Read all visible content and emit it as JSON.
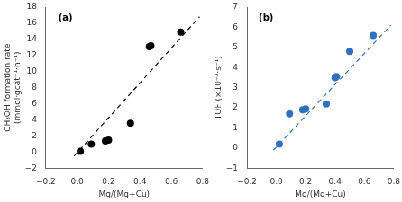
{
  "chart_data": [
    {
      "type": "scatter",
      "annotations": [
        "(a)"
      ],
      "xlabel": "Mg/(Mg+Cu)",
      "ylabel": [
        "CH₃OH formation rate",
        "(mmol·gcat⁻¹·h⁻¹)"
      ],
      "xlim": [
        -0.2,
        0.8
      ],
      "xticks": [
        {
          "value": -0.2,
          "label": "−0.2"
        },
        {
          "value": 0.0,
          "label": "0.0"
        },
        0.2,
        0.4,
        0.6,
        0.8
      ],
      "ylim": [
        -2,
        18
      ],
      "yticks": [
        {
          "value": -2,
          "label": "−2"
        },
        0,
        2,
        4,
        6,
        8,
        10,
        12,
        14,
        16,
        18
      ],
      "grid": false,
      "series": [
        {
          "type": "line",
          "color": "black",
          "line_style": "dashed",
          "x": [
            -0.02,
            0.78
          ],
          "values": [
            -0.5,
            16.8
          ]
        },
        {
          "type": "scatter",
          "color": "black",
          "marker": "circle",
          "x": [
            0.02,
            0.09,
            0.18,
            0.2,
            0.34,
            0.46,
            0.47,
            0.66
          ],
          "values": [
            0.1,
            1.0,
            1.4,
            1.5,
            3.6,
            13.1,
            13.2,
            14.9
          ]
        }
      ]
    },
    {
      "type": "scatter",
      "annotations": [
        "(b)"
      ],
      "xlabel": "Mg/(Mg+Cu)",
      "ylabel": "TOF (×10⁻³·s⁻¹)",
      "xlim": [
        -0.2,
        0.8
      ],
      "xticks": [
        {
          "value": -0.2,
          "label": "−0.2"
        },
        {
          "value": 0.0,
          "label": "0.0"
        },
        0.2,
        0.4,
        0.6,
        0.8
      ],
      "ylim": [
        -1,
        7
      ],
      "yticks": [
        {
          "value": -1,
          "label": "−1"
        },
        0,
        1,
        2,
        3,
        4,
        5,
        6,
        7
      ],
      "grid": false,
      "series": [
        {
          "type": "line",
          "color": "#3070C0",
          "line_style": "dashed",
          "x": [
            -0.02,
            0.78
          ],
          "values": [
            -0.1,
            6.1
          ]
        },
        {
          "type": "scatter",
          "color": "#3070C0",
          "marker": "circle",
          "x": [
            0.02,
            0.09,
            0.18,
            0.2,
            0.34,
            0.4,
            0.41,
            0.5,
            0.66
          ],
          "values": [
            0.2,
            1.7,
            1.9,
            1.95,
            2.2,
            3.5,
            3.55,
            4.8,
            5.6
          ]
        }
      ]
    }
  ]
}
